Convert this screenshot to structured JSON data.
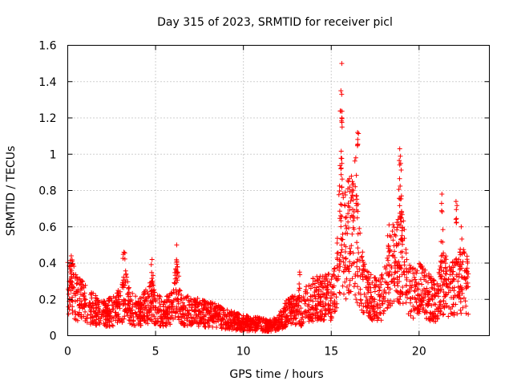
{
  "chart_data": {
    "type": "scatter",
    "title": "Day 315 of 2023, SRMTID for receiver picl",
    "xlabel": "GPS time / hours",
    "ylabel": "SRMTID / TECUs",
    "xlim": [
      0,
      24
    ],
    "ylim": [
      0,
      1.6
    ],
    "xticks": [
      0,
      5,
      10,
      15,
      20
    ],
    "xtick_labels": [
      "0",
      "5",
      "10",
      "15",
      "20"
    ],
    "yticks": [
      0,
      0.2,
      0.4,
      0.6,
      0.8,
      1,
      1.2,
      1.4,
      1.6
    ],
    "ytick_labels": [
      "0",
      "0.2",
      "0.4",
      "0.6",
      "0.8",
      "1",
      "1.2",
      "1.4",
      "1.6"
    ],
    "grid": true,
    "marker": "+",
    "color": "#ff0000",
    "series": [
      {
        "name": "SRMTID",
        "envelope_hours": [
          0.0,
          0.2,
          0.5,
          1.0,
          1.5,
          2.0,
          2.5,
          3.0,
          3.3,
          3.6,
          4.0,
          4.5,
          4.8,
          5.0,
          5.5,
          6.0,
          6.2,
          6.5,
          7.0,
          7.5,
          8.0,
          8.5,
          9.0,
          9.5,
          10.0,
          10.5,
          11.0,
          11.5,
          12.0,
          12.5,
          13.0,
          13.3,
          13.6,
          14.0,
          14.5,
          15.0,
          15.3,
          15.5,
          15.7,
          16.0,
          16.3,
          16.5,
          16.8,
          17.0,
          17.5,
          18.0,
          18.3,
          18.6,
          18.8,
          19.0,
          19.3,
          19.6,
          20.0,
          20.5,
          21.0,
          21.3,
          21.6,
          22.0,
          22.3,
          22.6,
          22.8
        ],
        "envelope_levels": [
          0.3,
          0.3,
          0.24,
          0.2,
          0.16,
          0.13,
          0.15,
          0.18,
          0.26,
          0.17,
          0.14,
          0.18,
          0.22,
          0.16,
          0.14,
          0.18,
          0.3,
          0.14,
          0.16,
          0.14,
          0.13,
          0.12,
          0.1,
          0.09,
          0.08,
          0.07,
          0.07,
          0.06,
          0.08,
          0.14,
          0.16,
          0.15,
          0.2,
          0.22,
          0.24,
          0.24,
          0.3,
          0.65,
          0.55,
          0.6,
          0.62,
          0.5,
          0.35,
          0.25,
          0.22,
          0.25,
          0.45,
          0.42,
          0.45,
          0.55,
          0.3,
          0.26,
          0.28,
          0.24,
          0.2,
          0.32,
          0.3,
          0.28,
          0.32,
          0.34,
          0.3
        ],
        "peaks": [
          {
            "x": 0.2,
            "y": 0.44
          },
          {
            "x": 3.2,
            "y": 0.46
          },
          {
            "x": 4.8,
            "y": 0.42
          },
          {
            "x": 6.2,
            "y": 0.5
          },
          {
            "x": 13.2,
            "y": 0.35
          },
          {
            "x": 15.6,
            "y": 1.5
          },
          {
            "x": 15.55,
            "y": 1.35
          },
          {
            "x": 15.6,
            "y": 1.2
          },
          {
            "x": 16.5,
            "y": 1.12
          },
          {
            "x": 16.4,
            "y": 0.98
          },
          {
            "x": 16.2,
            "y": 0.85
          },
          {
            "x": 18.9,
            "y": 1.03
          },
          {
            "x": 18.95,
            "y": 0.95
          },
          {
            "x": 19.0,
            "y": 0.77
          },
          {
            "x": 21.3,
            "y": 0.78
          },
          {
            "x": 22.1,
            "y": 0.74
          },
          {
            "x": 22.4,
            "y": 0.6
          }
        ],
        "points_per_hour": 110,
        "x_range": [
          0.0,
          22.8
        ]
      }
    ]
  }
}
